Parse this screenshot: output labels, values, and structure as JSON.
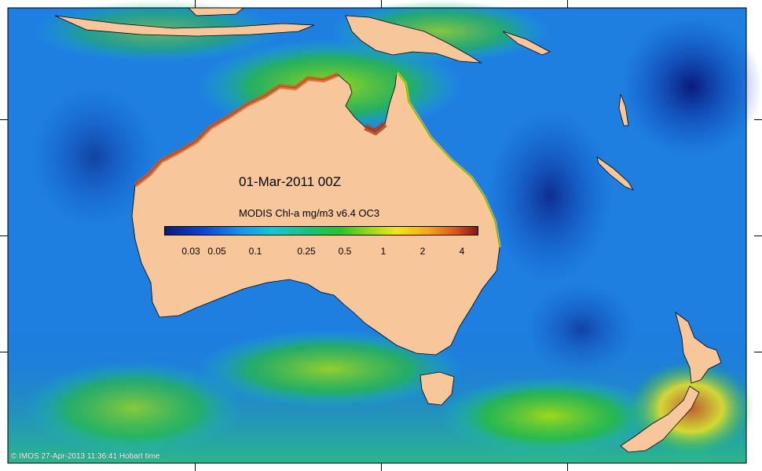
{
  "map": {
    "timestamp": "01-Mar-2011 00Z",
    "product": "MODIS Chl-a mg/m3 v6.4 OC3",
    "credit": "© IMOS 27-Apr-2013 11:36:41 Hobart time",
    "land_color": "#f7c79b",
    "ocean_color": "#1a6fd6"
  },
  "colorbar": {
    "ticks": [
      "0.03",
      "0.05",
      "0.1",
      "0.25",
      "0.5",
      "1",
      "2",
      "4"
    ],
    "colors": [
      "#0a1a7a",
      "#0b46c8",
      "#1692e6",
      "#19c3d8",
      "#1bc07a",
      "#27c42a",
      "#a2d81b",
      "#f2e51d",
      "#f5a71b",
      "#d8561a",
      "#7e1a10"
    ]
  }
}
